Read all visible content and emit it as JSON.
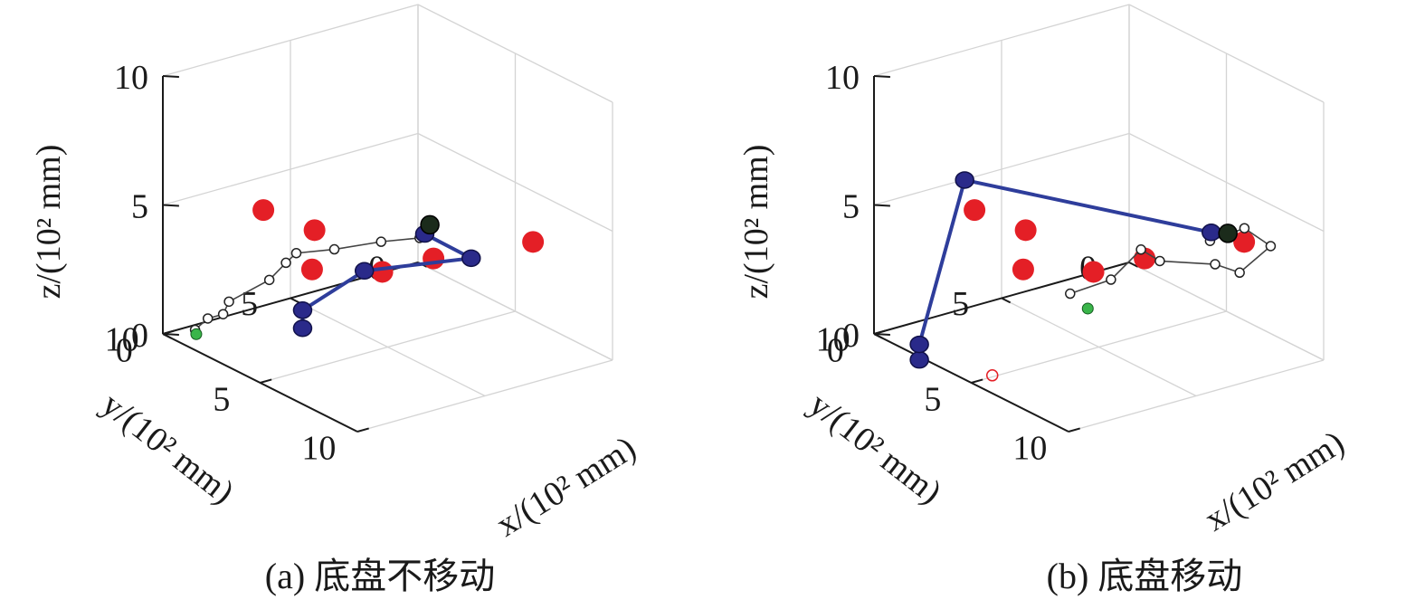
{
  "chart_data": [
    {
      "type": "scatter3d",
      "caption": "(a) 底盘不移动",
      "xlabel": "x/(10² mm)",
      "ylabel": "y/(10² mm)",
      "zlabel": "z/(10² mm)",
      "xlim": [
        0,
        10
      ],
      "ylim": [
        0,
        10
      ],
      "zlim": [
        0,
        10
      ],
      "xticks": [
        "0",
        "5",
        "10"
      ],
      "yticks": [
        "0",
        "5",
        "10"
      ],
      "zticks": [
        "0",
        "5",
        "10"
      ],
      "grid": true,
      "obstacles": [
        [
          3.2,
          8.5,
          5.6
        ],
        [
          3.6,
          6.8,
          4.5
        ],
        [
          1.9,
          5.6,
          2.0
        ],
        [
          4.2,
          4.6,
          2.5
        ],
        [
          4.6,
          2.9,
          2.7
        ],
        [
          6.7,
          0.6,
          3.5
        ]
      ],
      "path": [
        [
          5.2,
          3.9,
          4.0
        ],
        [
          4.4,
          4.8,
          3.8
        ],
        [
          3.7,
          6.1,
          3.6
        ],
        [
          2.4,
          6.6,
          3.1
        ],
        [
          2.0,
          6.7,
          2.6
        ],
        [
          1.8,
          7.2,
          2.0
        ],
        [
          1.3,
          8.4,
          1.3
        ],
        [
          1.0,
          8.4,
          0.7
        ],
        [
          1.0,
          9.0,
          0.7
        ],
        [
          1.0,
          9.5,
          0.4
        ]
      ],
      "start": [
        0.8,
        9.3,
        0.1
      ],
      "goal": [
        5.2,
        3.5,
        4.4
      ],
      "arm_links": [
        [
          2.2,
          6.2,
          0.0
        ],
        [
          2.2,
          6.2,
          0.7
        ],
        [
          3.8,
          5.0,
          2.5
        ],
        [
          6.8,
          3.1,
          3.6
        ],
        [
          5.2,
          3.7,
          4.1
        ]
      ],
      "base_position": null
    },
    {
      "type": "scatter3d",
      "caption": "(b) 底盘移动",
      "xlabel": "x/(10² mm)",
      "ylabel": "y/(10² mm)",
      "zlabel": "z/(10² mm)",
      "xlim": [
        0,
        10
      ],
      "ylim": [
        0,
        10
      ],
      "zlim": [
        0,
        10
      ],
      "xticks": [
        "0",
        "5",
        "10"
      ],
      "yticks": [
        "0",
        "5",
        "10"
      ],
      "zticks": [
        "0",
        "5",
        "10"
      ],
      "grid": true,
      "obstacles": [
        [
          3.2,
          8.5,
          5.6
        ],
        [
          3.6,
          6.8,
          4.5
        ],
        [
          1.9,
          5.6,
          2.0
        ],
        [
          4.2,
          4.6,
          2.5
        ],
        [
          4.6,
          2.9,
          2.7
        ],
        [
          6.7,
          0.6,
          3.5
        ]
      ],
      "path": [
        [
          7.7,
          2.7,
          4.5
        ],
        [
          7.5,
          1.2,
          4.5
        ],
        [
          7.8,
          0.4,
          3.7
        ],
        [
          6.6,
          0.7,
          2.3
        ],
        [
          5.6,
          0.9,
          2.3
        ],
        [
          4.2,
          2.0,
          2.2
        ],
        [
          3.1,
          1.9,
          2.2
        ],
        [
          3.0,
          3.0,
          1.3
        ],
        [
          3.0,
          4.6,
          1.2
        ]
      ],
      "start": [
        4.3,
        4.9,
        1.2
      ],
      "goal": [
        7.7,
        2.0,
        4.6
      ],
      "arm_links": [
        [
          2.2,
          9.9,
          -0.2
        ],
        [
          2.2,
          9.9,
          0.4
        ],
        [
          0.2,
          6.6,
          5.1
        ],
        [
          7.5,
          2.5,
          4.7
        ]
      ],
      "base_position": [
        4.9,
        9.1,
        0.0
      ]
    }
  ]
}
